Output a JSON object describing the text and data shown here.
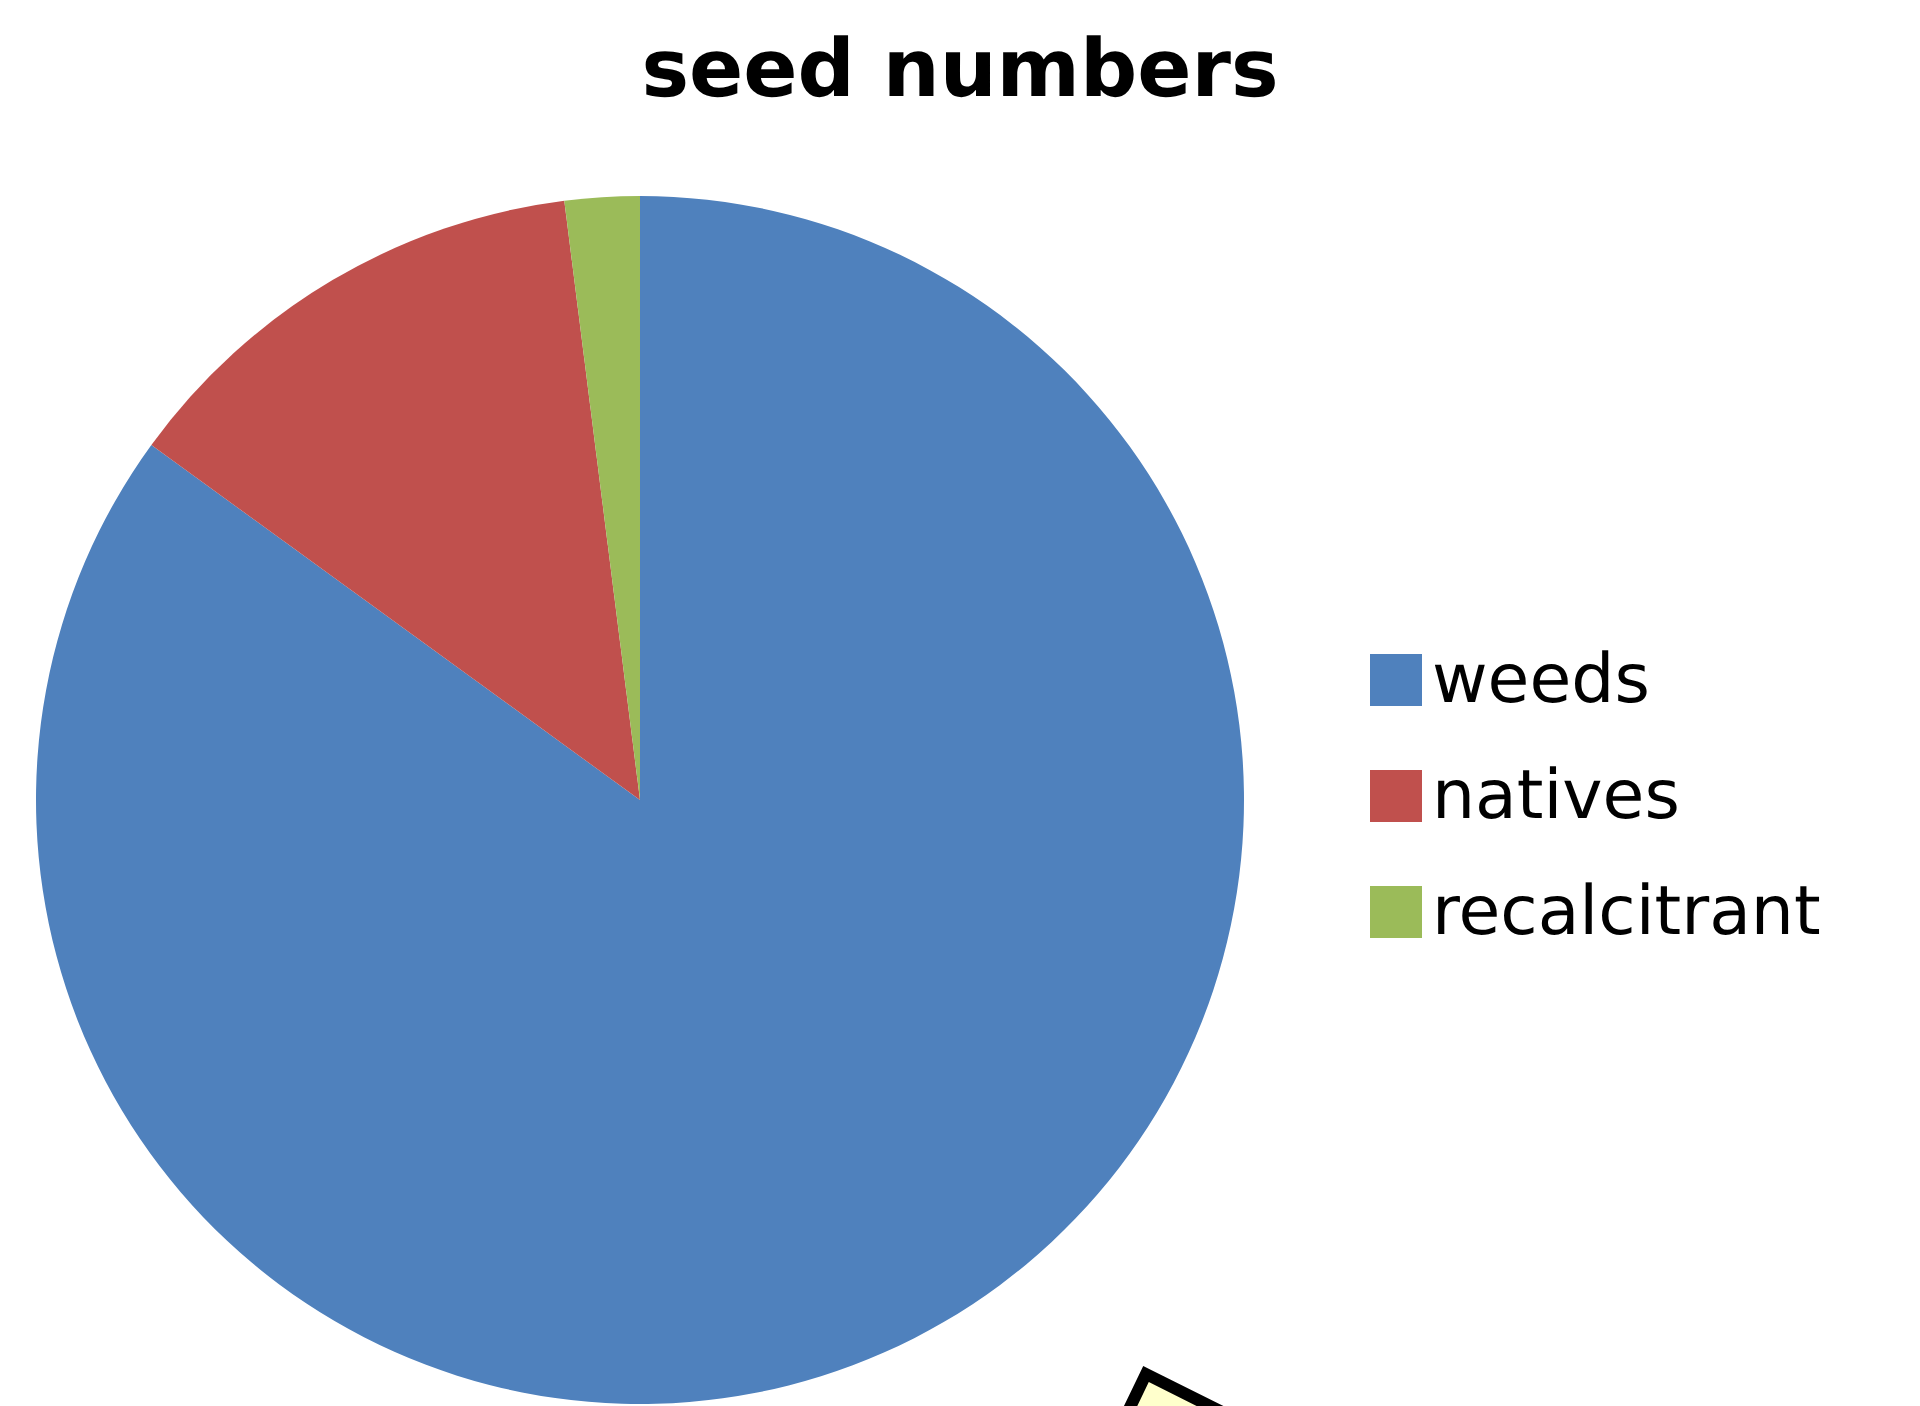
{
  "chart_data": {
    "type": "pie",
    "title": "seed numbers",
    "categories": [
      "weeds",
      "natives",
      "recalcitrant"
    ],
    "values": [
      85,
      13,
      2
    ],
    "colors": [
      "#4f81bd",
      "#c0504d",
      "#9bbb59"
    ],
    "legend": "right"
  }
}
